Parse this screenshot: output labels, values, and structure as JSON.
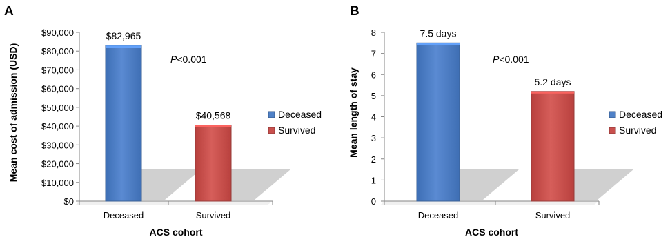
{
  "chart_data": [
    {
      "type": "bar",
      "panel": "A",
      "categories": [
        "Deceased",
        "Survived"
      ],
      "values": [
        82965,
        40568
      ],
      "data_labels": [
        "$82,965",
        "$40,568"
      ],
      "ylabel": "Mean cost of admission (USD)",
      "xlabel": "ACS cohort",
      "ylim": [
        0,
        90000
      ],
      "yticks": [
        0,
        10000,
        20000,
        30000,
        40000,
        50000,
        60000,
        70000,
        80000,
        90000
      ],
      "ytick_labels": [
        "$0",
        "$10,000",
        "$20,000",
        "$30,000",
        "$40,000",
        "$50,000",
        "$60,000",
        "$70,000",
        "$80,000",
        "$90,000"
      ],
      "annotation": {
        "italic": "P",
        "rest": "<0.001"
      },
      "legend": {
        "placement": "right",
        "entries": [
          {
            "label": "Deceased",
            "color": "#4f81c7"
          },
          {
            "label": "Survived",
            "color": "#c9504d"
          }
        ]
      },
      "grid": false
    },
    {
      "type": "bar",
      "panel": "B",
      "categories": [
        "Deceased",
        "Survived"
      ],
      "values": [
        7.5,
        5.2
      ],
      "data_labels": [
        "7.5 days",
        "5.2 days"
      ],
      "ylabel": "Mean length of stay",
      "xlabel": "ACS cohort",
      "ylim": [
        0,
        8
      ],
      "yticks": [
        0,
        1,
        2,
        3,
        4,
        5,
        6,
        7,
        8
      ],
      "ytick_labels": [
        "0",
        "1",
        "2",
        "3",
        "4",
        "5",
        "6",
        "7",
        "8"
      ],
      "annotation": {
        "italic": "P",
        "rest": "<0.001"
      },
      "legend": {
        "placement": "right",
        "entries": [
          {
            "label": "Deceased",
            "color": "#4f81c7"
          },
          {
            "label": "Survived",
            "color": "#c9504d"
          }
        ]
      },
      "grid": false
    }
  ]
}
